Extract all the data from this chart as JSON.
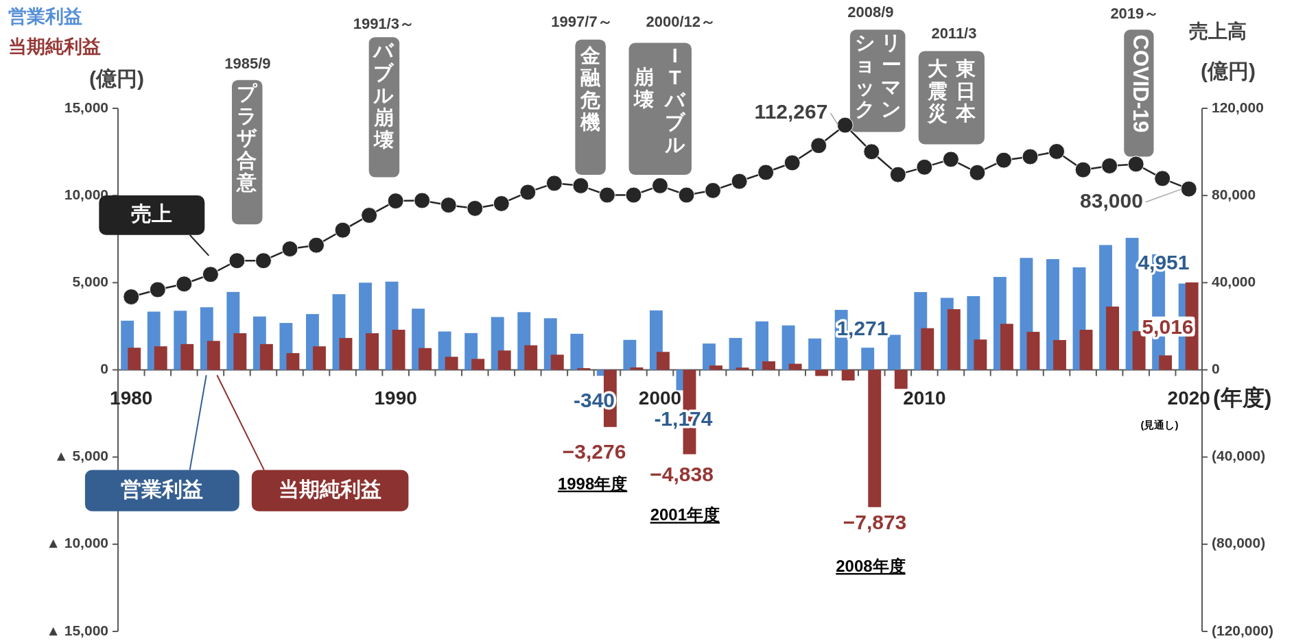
{
  "chart_data": {
    "type": "bar",
    "categories": [
      "1980",
      null,
      null,
      null,
      null,
      null,
      null,
      null,
      null,
      null,
      "1990",
      null,
      null,
      null,
      null,
      null,
      null,
      null,
      null,
      null,
      "2000",
      null,
      null,
      null,
      null,
      null,
      null,
      null,
      null,
      null,
      "2010",
      null,
      null,
      null,
      null,
      null,
      null,
      null,
      null,
      null,
      "2020"
    ],
    "xlabel": "(年度)",
    "ylabel": "(億円)",
    "y2label": "売上高 (億円)",
    "ylim": [
      -15000,
      15000
    ],
    "yticks": [
      {
        "value": 15000,
        "label": "15,000"
      },
      {
        "value": 10000,
        "label": "10,000"
      },
      {
        "value": 5000,
        "label": "5,000"
      },
      0,
      {
        "value": -5000,
        "label": "▲ 5,000"
      },
      {
        "value": -10000,
        "label": "▲ 10,000"
      },
      {
        "value": -15000,
        "label": "▲ 15,000"
      }
    ],
    "y2lim": [
      -120000,
      120000
    ],
    "y2ticks": [
      {
        "value": 120000,
        "label": "120,000"
      },
      {
        "value": 80000,
        "label": "80,000"
      },
      {
        "value": 40000,
        "label": "40,000"
      },
      0,
      {
        "value": -40000,
        "label": "(40,000)"
      },
      {
        "value": -80000,
        "label": "(80,000)"
      },
      {
        "value": -120000,
        "label": "(120,000)"
      }
    ],
    "series": [
      {
        "name": "営業利益",
        "color": "#558ed5",
        "values": [
          2820,
          3340,
          3390,
          3590,
          4470,
          3060,
          2690,
          3200,
          4340,
          5000,
          5060,
          3510,
          2200,
          2110,
          3030,
          3310,
          2960,
          2070,
          -340,
          1720,
          3410,
          -1174,
          1510,
          1830,
          2780,
          2550,
          1800,
          3440,
          1271,
          2010,
          4460,
          4130,
          4230,
          5330,
          6420,
          6350,
          5880,
          7160,
          7570,
          6630,
          4951
        ],
        "value_labels": [
          null,
          null,
          null,
          null,
          null,
          null,
          null,
          null,
          null,
          null,
          null,
          null,
          null,
          null,
          null,
          null,
          null,
          null,
          "-340",
          null,
          null,
          "-1,174",
          null,
          null,
          null,
          null,
          null,
          null,
          "1,271",
          null,
          null,
          null,
          null,
          null,
          null,
          null,
          null,
          null,
          null,
          null,
          "4,951"
        ]
      },
      {
        "name": "当期純利益",
        "color": "#953735",
        "values": [
          1270,
          1350,
          1480,
          1660,
          2100,
          1480,
          960,
          1350,
          1830,
          2100,
          2300,
          1250,
          750,
          630,
          1110,
          1410,
          870,
          100,
          -3276,
          140,
          1030,
          -4838,
          250,
          130,
          490,
          350,
          -350,
          -610,
          -7873,
          -1090,
          2390,
          3480,
          1740,
          2640,
          2180,
          1710,
          2300,
          3630,
          2220,
          830,
          5016
        ],
        "value_labels": [
          null,
          null,
          null,
          null,
          null,
          null,
          null,
          null,
          null,
          null,
          null,
          null,
          null,
          null,
          null,
          null,
          null,
          null,
          "−3,276",
          null,
          null,
          "−4,838",
          null,
          null,
          null,
          null,
          null,
          null,
          "−7,873",
          null,
          null,
          null,
          null,
          null,
          null,
          null,
          null,
          null,
          null,
          null,
          "5,016"
        ]
      },
      {
        "name": "売上",
        "type": "line",
        "axis": "y2",
        "color": "#262626",
        "marker": "circle",
        "values": [
          33500,
          36800,
          39400,
          43800,
          50100,
          50100,
          55500,
          57200,
          64100,
          70900,
          77500,
          77700,
          75600,
          74100,
          76300,
          81500,
          85600,
          84500,
          80200,
          80200,
          84500,
          80200,
          82300,
          86500,
          90600,
          95000,
          102900,
          112267,
          100100,
          89600,
          93000,
          96600,
          90500,
          96200,
          97800,
          100200,
          91800,
          93600,
          94400,
          87800,
          83000
        ],
        "value_labels": [
          null,
          null,
          null,
          null,
          null,
          null,
          null,
          null,
          null,
          null,
          null,
          null,
          null,
          null,
          null,
          null,
          null,
          null,
          null,
          null,
          null,
          null,
          null,
          null,
          null,
          null,
          null,
          "112,267",
          null,
          null,
          null,
          null,
          null,
          null,
          null,
          null,
          null,
          null,
          null,
          null,
          "83,000"
        ]
      }
    ],
    "annotations": [
      "1985/9",
      "プラザ合意",
      "1991/3～",
      "バブル崩壊",
      "1997/7～",
      "金融危機",
      "2000/12～",
      "ITバブル",
      "崩壊",
      "2008/9",
      "リーマン",
      "ショック",
      "2011/3",
      "東日本",
      "大震災",
      "2019～",
      "COVID-19",
      "1998年度",
      "2001年度",
      "2008年度",
      "(見通し)"
    ],
    "legend": "top left"
  }
}
